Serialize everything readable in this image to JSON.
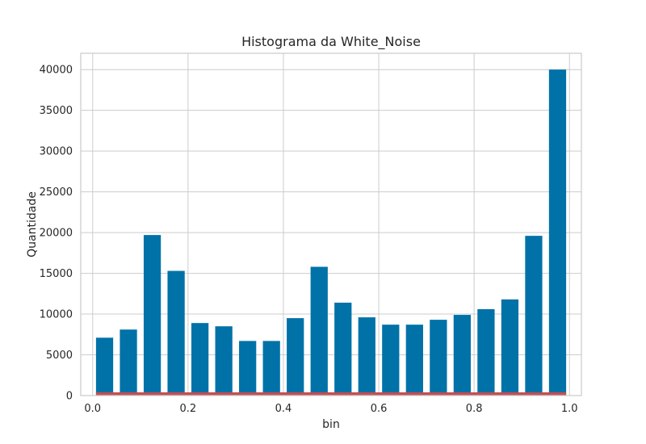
{
  "chart_data": {
    "type": "bar",
    "title": "Histograma da White_Noise",
    "xlabel": "bin",
    "ylabel": "Quantidade",
    "xlim": [
      -0.025,
      1.025
    ],
    "ylim": [
      0,
      42000
    ],
    "xticks": [
      0.0,
      0.2,
      0.4,
      0.6,
      0.8,
      1.0
    ],
    "xtick_labels": [
      "0.0",
      "0.2",
      "0.4",
      "0.6",
      "0.8",
      "1.0"
    ],
    "yticks": [
      0,
      5000,
      10000,
      15000,
      20000,
      25000,
      30000,
      35000,
      40000
    ],
    "ytick_labels": [
      "0",
      "5000",
      "10000",
      "15000",
      "20000",
      "25000",
      "30000",
      "35000",
      "40000"
    ],
    "grid": true,
    "bar_color": "#0072a8",
    "baseline_color": "#c44e52",
    "bin_centers": [
      0.025,
      0.075,
      0.125,
      0.175,
      0.225,
      0.275,
      0.325,
      0.375,
      0.425,
      0.475,
      0.525,
      0.575,
      0.625,
      0.675,
      0.725,
      0.775,
      0.825,
      0.875,
      0.925,
      0.975
    ],
    "bin_width": 0.05,
    "values": [
      7100,
      8100,
      19700,
      15300,
      8900,
      8500,
      6700,
      6700,
      9500,
      15800,
      11400,
      9600,
      8700,
      8700,
      9300,
      9900,
      10600,
      11800,
      19600,
      40000
    ]
  }
}
